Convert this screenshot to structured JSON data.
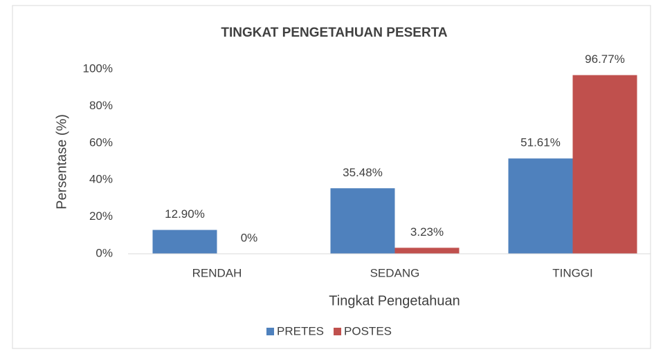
{
  "chart_data": {
    "type": "bar",
    "title": "TINGKAT PENGETAHUAN PESERTA",
    "x_label": "Tingkat Pengetahuan",
    "y_label": "Persentase (%)",
    "categories": [
      "RENDAH",
      "SEDANG",
      "TINGGI"
    ],
    "series": [
      {
        "name": "PRETES",
        "color": "#4f81bd",
        "values": [
          12.9,
          35.48,
          51.61
        ],
        "value_labels": [
          "12.90%",
          "35.48%",
          "51.61%"
        ]
      },
      {
        "name": "POSTES",
        "color": "#c0504d",
        "values": [
          0,
          3.23,
          96.77
        ],
        "value_labels": [
          "0%",
          "3.23%",
          "96.77%"
        ]
      }
    ],
    "ylim": [
      0,
      100
    ],
    "yticks": [
      {
        "value": 0,
        "label": "0%"
      },
      {
        "value": 20,
        "label": "20%"
      },
      {
        "value": 40,
        "label": "40%"
      },
      {
        "value": 60,
        "label": "60%"
      },
      {
        "value": 80,
        "label": "80%"
      },
      {
        "value": 100,
        "label": "100%"
      }
    ],
    "grid": false,
    "legend": "bottom"
  }
}
